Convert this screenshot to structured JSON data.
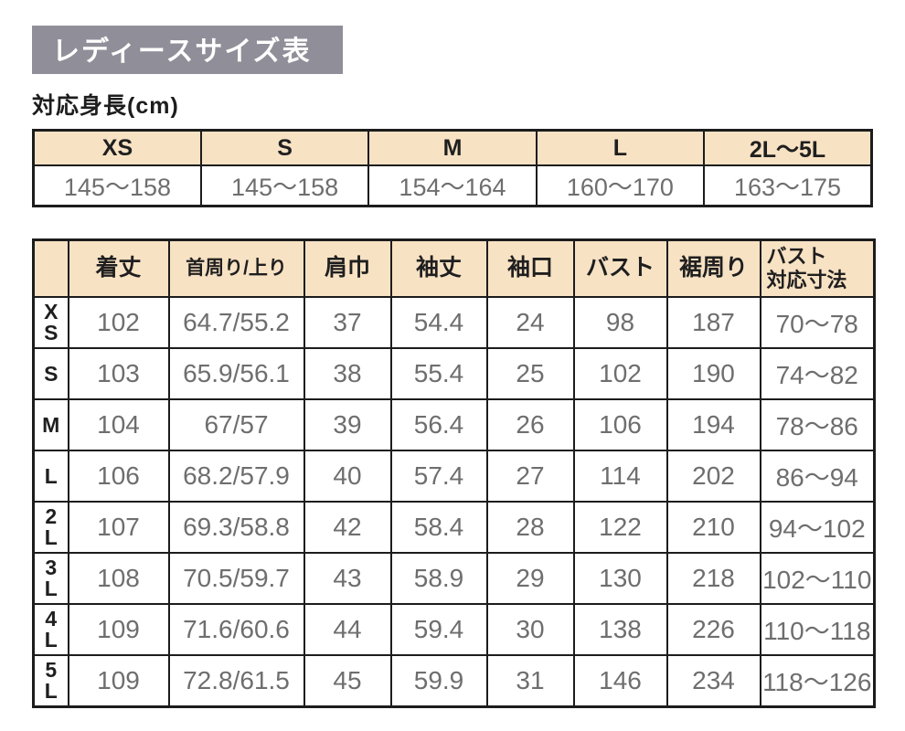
{
  "page": {
    "title": "レディースサイズ表",
    "height_label": "対応身長(cm)"
  },
  "colors": {
    "title_bg": "#908f99",
    "title_text": "#ffffff",
    "table_header_bg": "#f8e2c4",
    "border": "#1c1c1c",
    "value_text": "#6e6e6e",
    "label_text": "#1f1f1f"
  },
  "height_table": {
    "columns": [
      "XS",
      "S",
      "M",
      "L",
      "2L〜5L"
    ],
    "values": [
      "145〜158",
      "145〜158",
      "154〜164",
      "160〜170",
      "163〜175"
    ]
  },
  "size_table": {
    "headers": [
      "",
      "着丈",
      "首周り/上り",
      "肩巾",
      "袖丈",
      "袖口",
      "バスト",
      "裾周り",
      "バスト\n対応寸法"
    ],
    "rows": [
      {
        "size": "X\nS",
        "size_plain": "XS",
        "values": [
          "102",
          "64.7/55.2",
          "37",
          "54.4",
          "24",
          "98",
          "187",
          "70〜78"
        ]
      },
      {
        "size": "S",
        "size_plain": "S",
        "values": [
          "103",
          "65.9/56.1",
          "38",
          "55.4",
          "25",
          "102",
          "190",
          "74〜82"
        ]
      },
      {
        "size": "M",
        "size_plain": "M",
        "values": [
          "104",
          "67/57",
          "39",
          "56.4",
          "26",
          "106",
          "194",
          "78〜86"
        ]
      },
      {
        "size": "L",
        "size_plain": "L",
        "values": [
          "106",
          "68.2/57.9",
          "40",
          "57.4",
          "27",
          "114",
          "202",
          "86〜94"
        ]
      },
      {
        "size": "2\nL",
        "size_plain": "2L",
        "values": [
          "107",
          "69.3/58.8",
          "42",
          "58.4",
          "28",
          "122",
          "210",
          "94〜102"
        ]
      },
      {
        "size": "3\nL",
        "size_plain": "3L",
        "values": [
          "108",
          "70.5/59.7",
          "43",
          "58.9",
          "29",
          "130",
          "218",
          "102〜110"
        ]
      },
      {
        "size": "4\nL",
        "size_plain": "4L",
        "values": [
          "109",
          "71.6/60.6",
          "44",
          "59.4",
          "30",
          "138",
          "226",
          "110〜118"
        ]
      },
      {
        "size": "5\nL",
        "size_plain": "5L",
        "values": [
          "109",
          "72.8/61.5",
          "45",
          "59.9",
          "31",
          "146",
          "234",
          "118〜126"
        ]
      }
    ]
  }
}
